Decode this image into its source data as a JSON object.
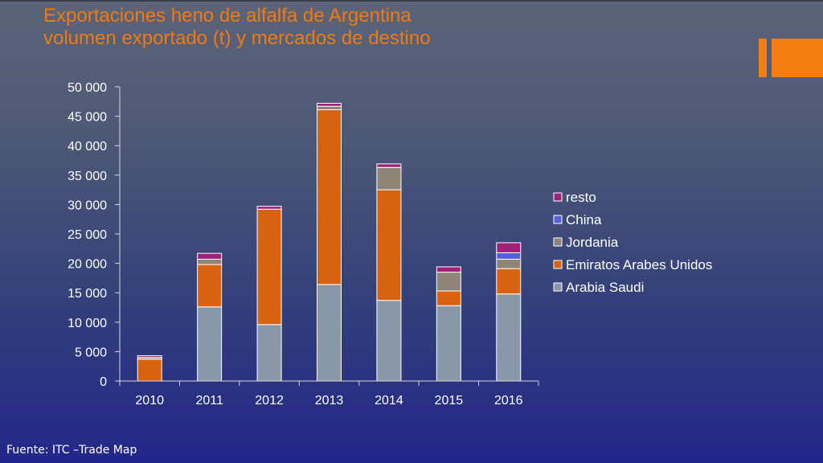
{
  "title_line1": "Exportaciones heno de alfalfa de Argentina",
  "title_line2": "volumen exportado (t) y mercados de destino",
  "source": "Fuente: ITC –Trade Map",
  "colors": {
    "Arabia Saudi": "#8a97a8",
    "Emiratos Arabes Unidos": "#d8620f",
    "Jordania": "#8e8478",
    "China": "#5860d8",
    "resto": "#a0207a"
  },
  "chart_data": {
    "type": "bar",
    "stacked": true,
    "categories": [
      "2010",
      "2011",
      "2012",
      "2013",
      "2014",
      "2015",
      "2016"
    ],
    "series": [
      {
        "name": "Arabia Saudi",
        "values": [
          0,
          12600,
          9600,
          16400,
          13700,
          12800,
          14800
        ]
      },
      {
        "name": "Emiratos Arabes Unidos",
        "values": [
          3700,
          7200,
          19600,
          29700,
          18800,
          2500,
          4300
        ]
      },
      {
        "name": "Jordania",
        "values": [
          300,
          900,
          0,
          600,
          3800,
          3200,
          1600
        ]
      },
      {
        "name": "China",
        "values": [
          0,
          0,
          0,
          0,
          0,
          0,
          1100
        ]
      },
      {
        "name": "resto",
        "values": [
          300,
          1000,
          500,
          500,
          600,
          900,
          1700
        ]
      }
    ],
    "ylim": [
      0,
      50000
    ],
    "yticks": [
      0,
      5000,
      10000,
      15000,
      20000,
      25000,
      30000,
      35000,
      40000,
      45000,
      50000
    ],
    "ytick_labels": [
      "0",
      "5 000",
      "10 000",
      "15 000",
      "20 000",
      "25 000",
      "30 000",
      "35 000",
      "40 000",
      "45 000",
      "50 000"
    ],
    "legend_order": [
      "resto",
      "China",
      "Jordania",
      "Emiratos Arabes Unidos",
      "Arabia Saudi"
    ],
    "legend_position": "right",
    "grid": false
  }
}
